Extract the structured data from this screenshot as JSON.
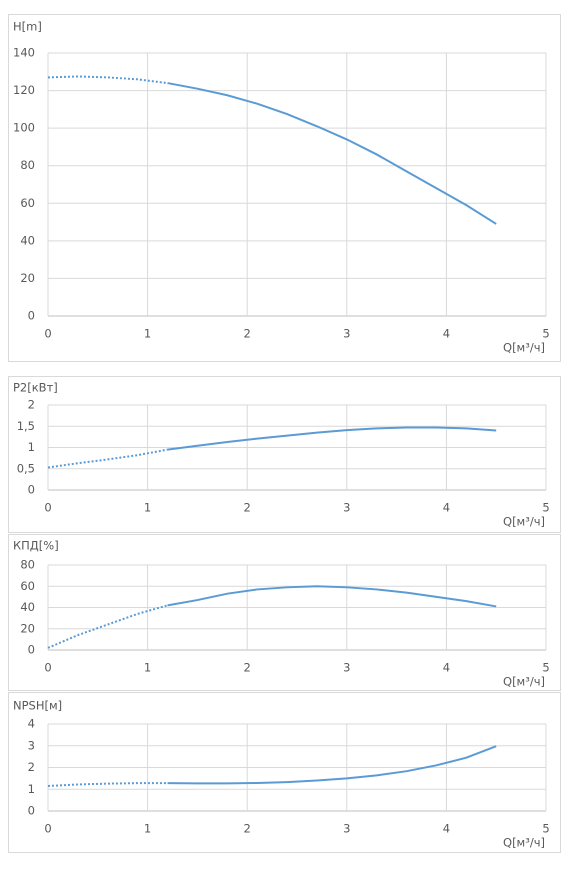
{
  "chart_data": [
    {
      "type": "line",
      "y_label": "H[m]",
      "x_label": "Q[м³/ч]",
      "grid": true,
      "x": [
        0,
        0.3,
        0.6,
        0.9,
        1.2,
        1.5,
        1.8,
        2.1,
        2.4,
        2.7,
        3.0,
        3.3,
        3.6,
        3.9,
        4.2,
        4.5
      ],
      "series": [
        {
          "color": "#5b9bd5",
          "style": "dotted",
          "values": [
            127,
            127.5,
            127,
            126,
            124,
            null,
            null,
            null,
            null,
            null,
            null,
            null,
            null,
            null,
            null,
            null
          ]
        },
        {
          "color": "#5b9bd5",
          "style": "solid",
          "values": [
            null,
            null,
            null,
            null,
            124,
            121,
            117.5,
            113,
            107.5,
            101,
            94,
            86,
            77,
            68,
            59,
            49
          ]
        }
      ],
      "xlim": [
        0,
        5
      ],
      "xticks": [
        0,
        1,
        2,
        3,
        4,
        5
      ],
      "ylim": [
        0,
        140
      ],
      "yticks": [
        0,
        20,
        40,
        60,
        80,
        100,
        120,
        140
      ]
    },
    {
      "type": "line",
      "y_label": "P2[кВт]",
      "x_label": "Q[м³/ч]",
      "grid": true,
      "x": [
        0,
        0.3,
        0.6,
        0.9,
        1.2,
        1.5,
        1.8,
        2.1,
        2.4,
        2.7,
        3.0,
        3.3,
        3.6,
        3.9,
        4.2,
        4.5
      ],
      "series": [
        {
          "color": "#5b9bd5",
          "style": "dotted",
          "values": [
            0.53,
            0.63,
            0.72,
            0.82,
            0.95,
            null,
            null,
            null,
            null,
            null,
            null,
            null,
            null,
            null,
            null,
            null
          ]
        },
        {
          "color": "#5b9bd5",
          "style": "solid",
          "values": [
            null,
            null,
            null,
            null,
            0.95,
            1.04,
            1.13,
            1.21,
            1.28,
            1.35,
            1.41,
            1.45,
            1.47,
            1.47,
            1.45,
            1.4
          ]
        }
      ],
      "xlim": [
        0,
        5
      ],
      "xticks": [
        0,
        1,
        2,
        3,
        4,
        5
      ],
      "ylim": [
        0,
        2
      ],
      "yticks": [
        0,
        {
          "value": 0.5,
          "label": "0,5"
        },
        1,
        {
          "value": 1.5,
          "label": "1,5"
        },
        2
      ]
    },
    {
      "type": "line",
      "y_label": "КПД[%]",
      "x_label": "Q[м³/ч]",
      "grid": true,
      "x": [
        0,
        0.3,
        0.6,
        0.9,
        1.2,
        1.5,
        1.8,
        2.1,
        2.4,
        2.7,
        3.0,
        3.3,
        3.6,
        3.9,
        4.2,
        4.5
      ],
      "series": [
        {
          "color": "#5b9bd5",
          "style": "dotted",
          "values": [
            2,
            14,
            24,
            34,
            42,
            null,
            null,
            null,
            null,
            null,
            null,
            null,
            null,
            null,
            null,
            null
          ]
        },
        {
          "color": "#5b9bd5",
          "style": "solid",
          "values": [
            null,
            null,
            null,
            null,
            42,
            47,
            53,
            57,
            59,
            60,
            59,
            57,
            54,
            50,
            46,
            41
          ]
        }
      ],
      "xlim": [
        0,
        5
      ],
      "xticks": [
        0,
        1,
        2,
        3,
        4,
        5
      ],
      "ylim": [
        0,
        80
      ],
      "yticks": [
        0,
        20,
        40,
        60,
        80
      ]
    },
    {
      "type": "line",
      "y_label": "NPSH[м]",
      "x_label": "Q[м³/ч]",
      "grid": true,
      "x": [
        0,
        0.3,
        0.6,
        0.9,
        1.2,
        1.5,
        1.8,
        2.1,
        2.4,
        2.7,
        3.0,
        3.3,
        3.6,
        3.9,
        4.2,
        4.5
      ],
      "series": [
        {
          "color": "#5b9bd5",
          "style": "dotted",
          "values": [
            1.15,
            1.22,
            1.26,
            1.28,
            1.28,
            null,
            null,
            null,
            null,
            null,
            null,
            null,
            null,
            null,
            null,
            null
          ]
        },
        {
          "color": "#5b9bd5",
          "style": "solid",
          "values": [
            null,
            null,
            null,
            null,
            1.28,
            1.27,
            1.27,
            1.29,
            1.33,
            1.4,
            1.5,
            1.64,
            1.83,
            2.1,
            2.45,
            2.98
          ]
        }
      ],
      "xlim": [
        0,
        5
      ],
      "xticks": [
        0,
        1,
        2,
        3,
        4,
        5
      ],
      "ylim": [
        0,
        4
      ],
      "yticks": [
        0,
        1,
        2,
        3,
        4
      ]
    }
  ]
}
